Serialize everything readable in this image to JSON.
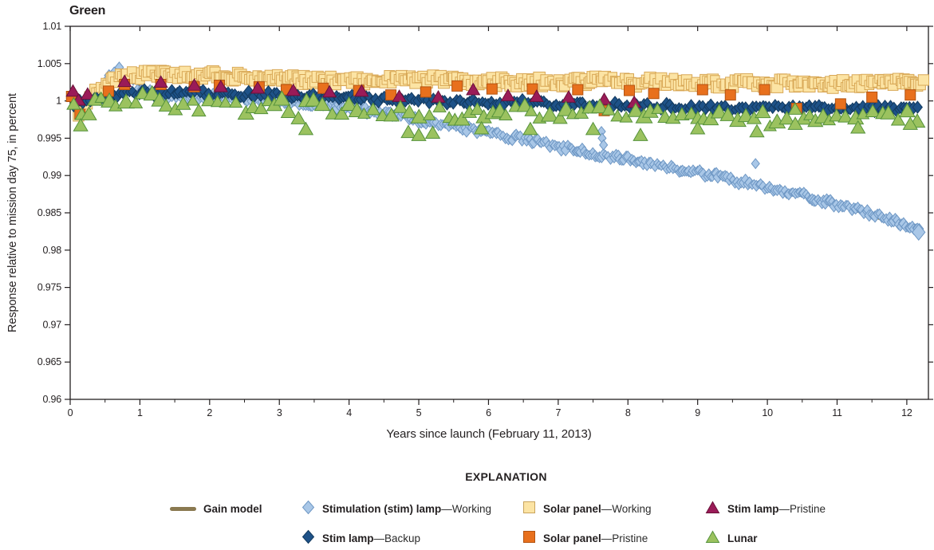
{
  "chart_data": {
    "type": "scatter",
    "title": "Green",
    "xlabel": "Years since launch (February 11, 2013)",
    "ylabel": "Response relative to mission day 75, in percent",
    "xlim": [
      0,
      12.31
    ],
    "ylim": [
      0.96,
      1.01
    ],
    "x_ticks": {
      "values": [
        0,
        1,
        2,
        3,
        4,
        5,
        6,
        7,
        8,
        9,
        10,
        11,
        12
      ],
      "labels": [
        "0",
        "1",
        "2",
        "3",
        "4",
        "5",
        "6",
        "7",
        "8",
        "9",
        "10",
        "11",
        "12"
      ],
      "minor_step": 0.5
    },
    "y_ticks": {
      "values": [
        1.01,
        1.005,
        1.0,
        0.995,
        0.99,
        0.985,
        0.98,
        0.975,
        0.97,
        0.965,
        0.96
      ],
      "labels": [
        "1.01",
        "1.005",
        "1",
        "0.995",
        "0.99",
        "0.985",
        "0.98",
        "0.975",
        "0.97",
        "0.965",
        "0.96"
      ]
    },
    "grid": false,
    "frame_color": "#231f20",
    "series": [
      {
        "id": "gain-model",
        "name": "Gain model",
        "type": "line",
        "color": "#8A7950",
        "width": 2.5,
        "anchors": [
          [
            0,
            1.0001
          ],
          [
            0.3,
            1.0003
          ],
          [
            0.55,
            1.003
          ],
          [
            0.68,
            1.004
          ],
          [
            0.9,
            1.0026
          ],
          [
            1.2,
            1.0008
          ],
          [
            2,
            1.0006
          ],
          [
            3,
            1.0
          ],
          [
            4,
            0.9991
          ],
          [
            5,
            0.9974
          ],
          [
            6,
            0.9957
          ],
          [
            7,
            0.9939
          ],
          [
            8,
            0.9921
          ],
          [
            9,
            0.9903
          ],
          [
            10,
            0.9884
          ],
          [
            11,
            0.9861
          ],
          [
            12.2,
            0.9823
          ]
        ]
      },
      {
        "id": "stim-lamp-working",
        "name": "Stimulation (stim) lamp—Working",
        "type": "scatter",
        "marker": "diamond",
        "fill": "#A9C7E7",
        "stroke": "#6E97C4",
        "size": 10,
        "step": 0.029,
        "jitter": 0.00045,
        "sparse": {
          "until": 1.0,
          "mult": 2.0
        },
        "anchors": [
          [
            0.05,
            0.9991
          ],
          [
            0.12,
            0.9982
          ],
          [
            0.2,
            0.9992
          ],
          [
            0.3,
            1.0
          ],
          [
            0.42,
            1.0015
          ],
          [
            0.55,
            1.0032
          ],
          [
            0.68,
            1.0042
          ],
          [
            0.8,
            1.0037
          ],
          [
            0.92,
            1.0025
          ],
          [
            1.05,
            1.0012
          ],
          [
            1.3,
            1.0007
          ],
          [
            1.7,
            1.0005
          ],
          [
            2.1,
            1.0006
          ],
          [
            2.5,
            1.0005
          ],
          [
            2.9,
            1.0001
          ],
          [
            3.3,
            0.9997
          ],
          [
            3.7,
            0.9994
          ],
          [
            4.0,
            0.9991
          ],
          [
            4.3,
            0.9986
          ],
          [
            4.6,
            0.9982
          ],
          [
            4.9,
            0.9977
          ],
          [
            5.2,
            0.9971
          ],
          [
            5.5,
            0.9966
          ],
          [
            5.8,
            0.9961
          ],
          [
            6.1,
            0.9955
          ],
          [
            6.4,
            0.995
          ],
          [
            6.7,
            0.9945
          ],
          [
            7.0,
            0.9939
          ],
          [
            7.3,
            0.9934
          ],
          [
            7.6,
            0.9928
          ],
          [
            7.9,
            0.9923
          ],
          [
            8.2,
            0.9917
          ],
          [
            8.5,
            0.9912
          ],
          [
            8.8,
            0.9906
          ],
          [
            9.1,
            0.9902
          ],
          [
            9.4,
            0.9896
          ],
          [
            9.7,
            0.989
          ],
          [
            10.0,
            0.9884
          ],
          [
            10.3,
            0.9878
          ],
          [
            10.6,
            0.9871
          ],
          [
            10.9,
            0.9863
          ],
          [
            11.2,
            0.9856
          ],
          [
            11.5,
            0.9849
          ],
          [
            11.8,
            0.984
          ],
          [
            12.0,
            0.9832
          ],
          [
            12.2,
            0.9823
          ]
        ],
        "outliers": [
          [
            7.62,
            0.9959
          ],
          [
            7.63,
            0.995
          ],
          [
            7.65,
            0.9941
          ],
          [
            9.83,
            0.9916
          ]
        ],
        "end_marker": {
          "x": 12.17,
          "y": 0.9824,
          "size": 16
        }
      },
      {
        "id": "solar-panel-working",
        "name": "Solar panel—Working",
        "type": "scatter",
        "marker": "square",
        "fill": "#FCE4A4",
        "stroke": "#D8A755",
        "size": 13,
        "step": 0.034,
        "jitter": 0.0006,
        "anchors": [
          [
            0.12,
            0.9986
          ],
          [
            0.22,
            0.999
          ],
          [
            0.35,
            1.0011
          ],
          [
            0.6,
            1.0028
          ],
          [
            0.9,
            1.0034
          ],
          [
            1.3,
            1.0035
          ],
          [
            1.7,
            1.0034
          ],
          [
            2.1,
            1.0035
          ],
          [
            2.5,
            1.0033
          ],
          [
            2.9,
            1.003
          ],
          [
            3.3,
            1.0028
          ],
          [
            3.7,
            1.0027
          ],
          [
            4.1,
            1.0027
          ],
          [
            4.6,
            1.0028
          ],
          [
            5.1,
            1.0029
          ],
          [
            5.6,
            1.0028
          ],
          [
            6.1,
            1.0026
          ],
          [
            6.6,
            1.0025
          ],
          [
            7.1,
            1.0025
          ],
          [
            7.6,
            1.0027
          ],
          [
            8.1,
            1.0025
          ],
          [
            8.6,
            1.0026
          ],
          [
            9.1,
            1.0024
          ],
          [
            9.6,
            1.0023
          ],
          [
            10.1,
            1.0024
          ],
          [
            10.6,
            1.0023
          ],
          [
            11.1,
            1.0023
          ],
          [
            11.6,
            1.0024
          ],
          [
            12.0,
            1.0024
          ],
          [
            12.25,
            1.0027
          ]
        ]
      },
      {
        "id": "stim-lamp-backup",
        "name": "Stim lamp—Backup",
        "type": "scatter",
        "marker": "diamond",
        "fill": "#1E5288",
        "stroke": "#133A5F",
        "size": 11,
        "step": 0.045,
        "jitter": 0.00045,
        "anchors": [
          [
            0.05,
            0.9996
          ],
          [
            0.3,
            1.0004
          ],
          [
            0.8,
            1.001
          ],
          [
            1.5,
            1.0011
          ],
          [
            2.0,
            1.001
          ],
          [
            2.5,
            1.0009
          ],
          [
            3.0,
            1.0008
          ],
          [
            3.5,
            1.0006
          ],
          [
            4.0,
            1.0004
          ],
          [
            4.5,
            1.0002
          ],
          [
            5.0,
            1.0
          ],
          [
            5.5,
            0.9999
          ],
          [
            6.0,
            0.9998
          ],
          [
            6.5,
            0.9997
          ],
          [
            7.0,
            0.9996
          ],
          [
            7.5,
            0.9995
          ],
          [
            8.0,
            0.9994
          ],
          [
            8.5,
            0.9993
          ],
          [
            9.0,
            0.9992
          ],
          [
            9.5,
            0.9991
          ],
          [
            10.0,
            0.9991
          ],
          [
            10.5,
            0.999
          ],
          [
            11.0,
            0.999
          ],
          [
            11.5,
            0.9989
          ],
          [
            12.2,
            0.9989
          ]
        ]
      },
      {
        "id": "solar-panel-pristine",
        "name": "Solar panel—Pristine",
        "type": "scatter",
        "marker": "square",
        "fill": "#E8701D",
        "stroke": "#B35311",
        "size": 13,
        "points": [
          [
            0.02,
            1.0006
          ],
          [
            0.14,
            0.9982
          ],
          [
            0.55,
            1.0013
          ],
          [
            0.78,
            1.0022
          ],
          [
            1.3,
            1.0022
          ],
          [
            1.78,
            1.0019
          ],
          [
            2.14,
            1.0021
          ],
          [
            2.71,
            1.0019
          ],
          [
            3.1,
            1.0015
          ],
          [
            3.63,
            1.0017
          ],
          [
            4.14,
            1.0014
          ],
          [
            4.6,
            1.0008
          ],
          [
            5.1,
            1.0012
          ],
          [
            5.55,
            1.002
          ],
          [
            6.05,
            1.0016
          ],
          [
            6.63,
            1.0016
          ],
          [
            7.28,
            1.0015
          ],
          [
            7.66,
            0.9987
          ],
          [
            8.02,
            1.0014
          ],
          [
            8.37,
            1.001
          ],
          [
            9.07,
            1.0015
          ],
          [
            9.47,
            1.0008
          ],
          [
            9.96,
            1.0015
          ],
          [
            10.42,
            0.999
          ],
          [
            11.05,
            0.9996
          ],
          [
            11.5,
            1.0005
          ],
          [
            12.05,
            1.0008
          ]
        ]
      },
      {
        "id": "stim-lamp-pristine",
        "name": "Stim lamp—Pristine",
        "type": "scatter",
        "marker": "triangle",
        "fill": "#9A1B58",
        "stroke": "#6B1139",
        "size": 15,
        "points": [
          [
            0.04,
            1.0012
          ],
          [
            0.12,
            1.0
          ],
          [
            0.25,
            1.0008
          ],
          [
            0.78,
            1.0025
          ],
          [
            1.3,
            1.0024
          ],
          [
            1.78,
            1.002
          ],
          [
            2.16,
            1.0018
          ],
          [
            2.69,
            1.0016
          ],
          [
            3.2,
            1.0013
          ],
          [
            3.72,
            1.0011
          ],
          [
            4.18,
            1.0012
          ],
          [
            4.72,
            1.0005
          ],
          [
            5.28,
            1.0004
          ],
          [
            5.78,
            1.0014
          ],
          [
            6.28,
            1.0006
          ],
          [
            6.69,
            1.0005
          ],
          [
            7.15,
            1.0004
          ],
          [
            7.66,
            1.0001
          ],
          [
            8.09,
            0.9997
          ]
        ]
      },
      {
        "id": "lunar",
        "name": "Lunar",
        "type": "scatter",
        "marker": "triangle",
        "fill": "#9BC25F",
        "stroke": "#55923B",
        "size": 16,
        "step": 0.115,
        "jitter": 0.0009,
        "dip_chance": 0.12,
        "dip_depth": 0.0016,
        "anchors": [
          [
            0.05,
            0.9988
          ],
          [
            0.2,
            0.9988
          ],
          [
            0.5,
            0.9996
          ],
          [
            0.8,
            1.0002
          ],
          [
            1.2,
            1.0
          ],
          [
            1.6,
            0.9999
          ],
          [
            2.0,
            0.9999
          ],
          [
            2.4,
            0.9998
          ],
          [
            2.8,
            0.9996
          ],
          [
            3.2,
            0.9992
          ],
          [
            3.6,
            0.9991
          ],
          [
            4.0,
            0.9989
          ],
          [
            4.4,
            0.9988
          ],
          [
            4.8,
            0.9986
          ],
          [
            5.2,
            0.9985
          ],
          [
            5.6,
            0.9984
          ],
          [
            6.0,
            0.9985
          ],
          [
            6.4,
            0.9984
          ],
          [
            6.8,
            0.9984
          ],
          [
            7.2,
            0.9984
          ],
          [
            7.6,
            0.9983
          ],
          [
            8.0,
            0.9981
          ],
          [
            8.4,
            0.9981
          ],
          [
            8.8,
            0.9981
          ],
          [
            9.2,
            0.998
          ],
          [
            9.6,
            0.998
          ],
          [
            10.0,
            0.998
          ],
          [
            10.4,
            0.998
          ],
          [
            10.8,
            0.9979
          ],
          [
            11.2,
            0.9979
          ],
          [
            11.6,
            0.9979
          ],
          [
            12.0,
            0.9979
          ],
          [
            12.2,
            0.9979
          ]
        ],
        "outliers": [
          [
            0.15,
            0.9966
          ],
          [
            3.38,
            0.9961
          ],
          [
            4.85,
            0.9957
          ],
          [
            5.0,
            0.9953
          ],
          [
            5.2,
            0.9956
          ],
          [
            5.9,
            0.9962
          ],
          [
            6.6,
            0.9961
          ],
          [
            7.5,
            0.9961
          ],
          [
            8.18,
            0.9953
          ],
          [
            9.0,
            0.9962
          ],
          [
            9.85,
            0.9958
          ],
          [
            10.4,
            0.9968
          ],
          [
            11.3,
            0.9963
          ],
          [
            12.05,
            0.9968
          ]
        ]
      }
    ]
  },
  "legend": {
    "title": "EXPLANATION",
    "items": [
      {
        "id": "gain-model",
        "swatch": "line",
        "color": "#8A7950",
        "bold": "Gain model",
        "sep": "",
        "rest": "",
        "row": 1,
        "col": 1
      },
      {
        "id": "stim-lamp-working",
        "swatch": "diamond",
        "fill": "#A9C7E7",
        "stroke": "#6E97C4",
        "bold": "Stimulation (stim) lamp",
        "sep": "—",
        "rest": "Working",
        "row": 1,
        "col": 2
      },
      {
        "id": "solar-panel-working",
        "swatch": "square",
        "fill": "#FCE4A4",
        "stroke": "#C9A45C",
        "bold": "Solar panel",
        "sep": "—",
        "rest": "Working",
        "row": 1,
        "col": 3
      },
      {
        "id": "stim-lamp-pristine",
        "swatch": "triangle",
        "fill": "#9A1B58",
        "stroke": "#6B1139",
        "bold": "Stim lamp",
        "sep": "—",
        "rest": "Pristine",
        "row": 1,
        "col": 4
      },
      {
        "id": "stim-lamp-backup",
        "swatch": "diamond",
        "fill": "#1E5288",
        "stroke": "#133A5F",
        "bold": "Stim lamp",
        "sep": "—",
        "rest": "Backup",
        "row": 2,
        "col": 2
      },
      {
        "id": "solar-panel-pristine",
        "swatch": "square",
        "fill": "#E8701D",
        "stroke": "#B35311",
        "bold": "Solar panel",
        "sep": "—",
        "rest": "Pristine",
        "row": 2,
        "col": 3
      },
      {
        "id": "lunar",
        "swatch": "triangle",
        "fill": "#9BC25F",
        "stroke": "#55923B",
        "bold": "Lunar",
        "sep": "",
        "rest": "",
        "row": 2,
        "col": 4
      }
    ]
  }
}
